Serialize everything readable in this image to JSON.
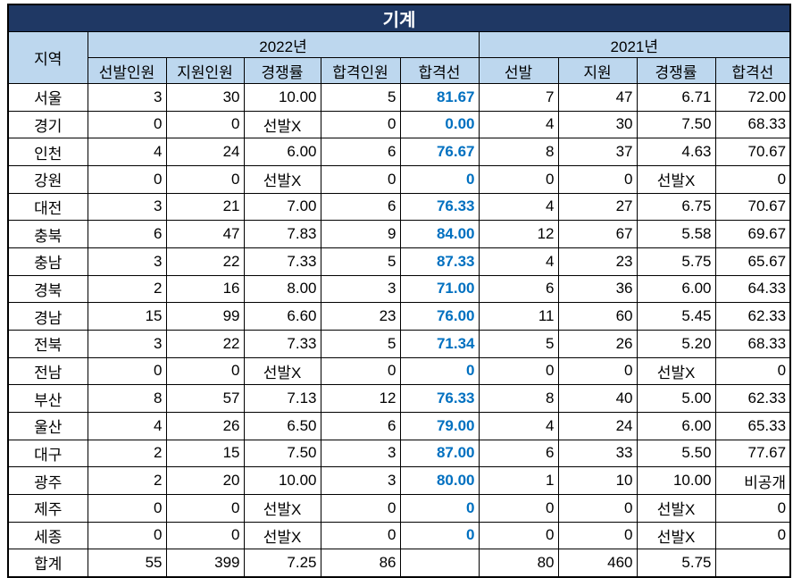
{
  "title": "기계",
  "header": {
    "region": "지역",
    "year_2022": "2022년",
    "year_2021": "2021년",
    "sub_2022": [
      "선발인원",
      "지원인원",
      "경쟁률",
      "합격인원",
      "합격선"
    ],
    "sub_2021": [
      "선발",
      "지원",
      "경쟁률",
      "합격선"
    ]
  },
  "colors": {
    "title_bg": "#1F3864",
    "header_bg": "#BDD7EE",
    "cutline_text": "#0070C0",
    "grid_line": "#000000"
  },
  "special_values": {
    "no_selection": "선발X",
    "not_disclosed": "비공개",
    "total_label": "합계"
  },
  "chart_data": {
    "type": "table",
    "title": "기계",
    "column_groups": [
      {
        "label": "지역",
        "span": 1
      },
      {
        "label": "2022년",
        "span": 5
      },
      {
        "label": "2021년",
        "span": 4
      }
    ],
    "columns": [
      "지역",
      "선발인원",
      "지원인원",
      "경쟁률",
      "합격인원",
      "합격선",
      "선발",
      "지원",
      "경쟁률",
      "합격선"
    ],
    "rows": [
      [
        "서울",
        "3",
        "30",
        "10.00",
        "5",
        "81.67",
        "7",
        "47",
        "6.71",
        "72.00"
      ],
      [
        "경기",
        "0",
        "0",
        "선발X",
        "0",
        "0.00",
        "4",
        "30",
        "7.50",
        "68.33"
      ],
      [
        "인천",
        "4",
        "24",
        "6.00",
        "6",
        "76.67",
        "8",
        "37",
        "4.63",
        "70.67"
      ],
      [
        "강원",
        "0",
        "0",
        "선발X",
        "0",
        "0",
        "0",
        "0",
        "선발X",
        "0"
      ],
      [
        "대전",
        "3",
        "21",
        "7.00",
        "6",
        "76.33",
        "4",
        "27",
        "6.75",
        "70.67"
      ],
      [
        "충북",
        "6",
        "47",
        "7.83",
        "9",
        "84.00",
        "12",
        "67",
        "5.58",
        "69.67"
      ],
      [
        "충남",
        "3",
        "22",
        "7.33",
        "5",
        "87.33",
        "4",
        "23",
        "5.75",
        "65.67"
      ],
      [
        "경북",
        "2",
        "16",
        "8.00",
        "3",
        "71.00",
        "6",
        "36",
        "6.00",
        "64.33"
      ],
      [
        "경남",
        "15",
        "99",
        "6.60",
        "23",
        "76.00",
        "11",
        "60",
        "5.45",
        "62.33"
      ],
      [
        "전북",
        "3",
        "22",
        "7.33",
        "5",
        "71.34",
        "5",
        "26",
        "5.20",
        "68.33"
      ],
      [
        "전남",
        "0",
        "0",
        "선발X",
        "0",
        "0",
        "0",
        "0",
        "선발X",
        "0"
      ],
      [
        "부산",
        "8",
        "57",
        "7.13",
        "12",
        "76.33",
        "8",
        "40",
        "5.00",
        "62.33"
      ],
      [
        "울산",
        "4",
        "26",
        "6.50",
        "6",
        "79.00",
        "4",
        "24",
        "6.00",
        "65.33"
      ],
      [
        "대구",
        "2",
        "15",
        "7.50",
        "3",
        "87.00",
        "6",
        "33",
        "5.50",
        "77.67"
      ],
      [
        "광주",
        "2",
        "20",
        "10.00",
        "3",
        "80.00",
        "1",
        "10",
        "10.00",
        "비공개"
      ],
      [
        "제주",
        "0",
        "0",
        "선발X",
        "0",
        "0",
        "0",
        "0",
        "선발X",
        "0"
      ],
      [
        "세종",
        "0",
        "0",
        "선발X",
        "0",
        "0",
        "0",
        "0",
        "선발X",
        "0"
      ],
      [
        "합계",
        "55",
        "399",
        "7.25",
        "86",
        "",
        "80",
        "460",
        "5.75",
        ""
      ]
    ]
  }
}
